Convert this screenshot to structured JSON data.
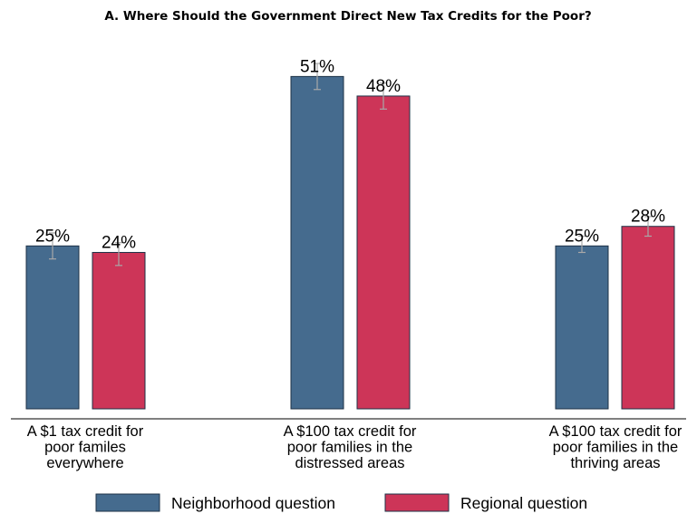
{
  "chart_data": {
    "type": "bar",
    "title": "A. Where Should the Government Direct New Tax Credits for the Poor?",
    "categories": [
      [
        "A $1 tax credit for",
        "poor familes",
        "everywhere"
      ],
      [
        "A $100 tax credit for",
        "poor families in the",
        "distressed areas"
      ],
      [
        "A $100 tax credit for",
        "poor families in the",
        "thriving areas"
      ]
    ],
    "series": [
      {
        "name": "Neighborhood question",
        "color": "#456b8e",
        "values": [
          25,
          51,
          25
        ],
        "labels": [
          "25%",
          "51%",
          "25%"
        ],
        "ci": [
          [
            23,
            27
          ],
          [
            49,
            53
          ],
          [
            24,
            26.5
          ]
        ]
      },
      {
        "name": "Regional question",
        "color": "#cd3558",
        "values": [
          24,
          48,
          28
        ],
        "labels": [
          "24%",
          "48%",
          "28%"
        ],
        "ci": [
          [
            22,
            25.5
          ],
          [
            46,
            50
          ],
          [
            26.5,
            29.5
          ]
        ]
      }
    ],
    "ylim": [
      0,
      53
    ],
    "grid": false,
    "legend": "bottom"
  }
}
